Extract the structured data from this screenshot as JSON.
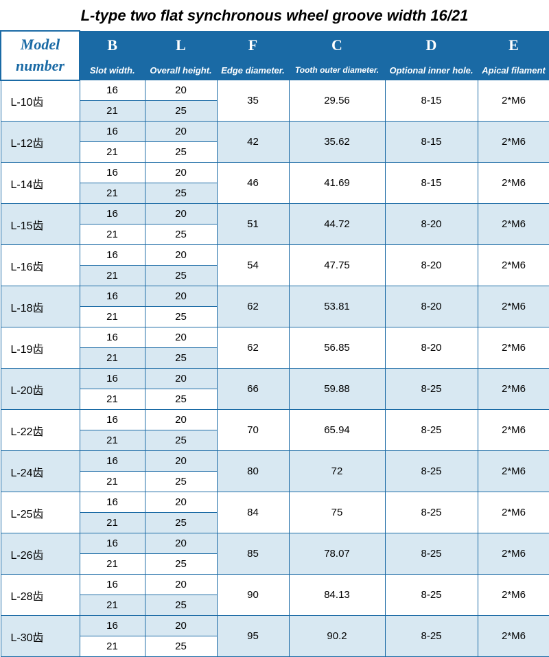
{
  "title": "L-type two flat synchronous wheel groove width 16/21",
  "header": {
    "model_label": "Model number",
    "letters": {
      "B": "B",
      "L": "L",
      "F": "F",
      "C": "C",
      "D": "D",
      "E": "E"
    },
    "labels": {
      "B": "Slot width.",
      "L": "Overall height.",
      "F": "Edge diameter.",
      "C": "Tooth outer diameter.",
      "D": "Optional inner hole.",
      "E": "Apical filament"
    }
  },
  "sub_b": [
    "16",
    "21"
  ],
  "sub_l": [
    "20",
    "25"
  ],
  "rows": [
    {
      "model": "L-10齿",
      "f": "35",
      "c": "29.56",
      "d": "8-15",
      "e": "2*M6",
      "alt": false
    },
    {
      "model": "L-12齿",
      "f": "42",
      "c": "35.62",
      "d": "8-15",
      "e": "2*M6",
      "alt": true
    },
    {
      "model": "L-14齿",
      "f": "46",
      "c": "41.69",
      "d": "8-15",
      "e": "2*M6",
      "alt": false
    },
    {
      "model": "L-15齿",
      "f": "51",
      "c": "44.72",
      "d": "8-20",
      "e": "2*M6",
      "alt": true
    },
    {
      "model": "L-16齿",
      "f": "54",
      "c": "47.75",
      "d": "8-20",
      "e": "2*M6",
      "alt": false
    },
    {
      "model": "L-18齿",
      "f": "62",
      "c": "53.81",
      "d": "8-20",
      "e": "2*M6",
      "alt": true
    },
    {
      "model": "L-19齿",
      "f": "62",
      "c": "56.85",
      "d": "8-20",
      "e": "2*M6",
      "alt": false
    },
    {
      "model": "L-20齿",
      "f": "66",
      "c": "59.88",
      "d": "8-25",
      "e": "2*M6",
      "alt": true
    },
    {
      "model": "L-22齿",
      "f": "70",
      "c": "65.94",
      "d": "8-25",
      "e": "2*M6",
      "alt": false
    },
    {
      "model": "L-24齿",
      "f": "80",
      "c": "72",
      "d": "8-25",
      "e": "2*M6",
      "alt": true
    },
    {
      "model": "L-25齿",
      "f": "84",
      "c": "75",
      "d": "8-25",
      "e": "2*M6",
      "alt": false
    },
    {
      "model": "L-26齿",
      "f": "85",
      "c": "78.07",
      "d": "8-25",
      "e": "2*M6",
      "alt": true
    },
    {
      "model": "L-28齿",
      "f": "90",
      "c": "84.13",
      "d": "8-25",
      "e": "2*M6",
      "alt": false
    },
    {
      "model": "L-30齿",
      "f": "95",
      "c": "90.2",
      "d": "8-25",
      "e": "2*M6",
      "alt": true
    }
  ],
  "style": {
    "header_bg": "#1a6aa5",
    "header_fg": "#ffffff",
    "border_color": "#1a6aa5",
    "alt_row_bg": "#d8e8f2",
    "plain_bg": "#ffffff",
    "title_color": "#000000",
    "model_head_color": "#1a6aa5"
  }
}
